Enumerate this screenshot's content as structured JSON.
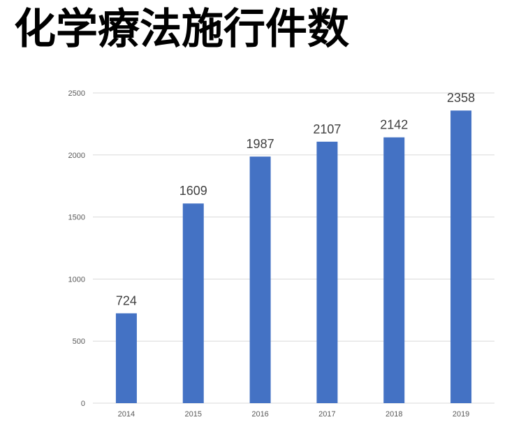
{
  "title": "化学療法施行件数",
  "chart_data": {
    "type": "bar",
    "categories": [
      "2014",
      "2015",
      "2016",
      "2017",
      "2018",
      "2019"
    ],
    "values": [
      724,
      1609,
      1987,
      2107,
      2142,
      2358
    ],
    "data_labels": [
      "724",
      "1609",
      "1987",
      "2107",
      "2142",
      "2358"
    ],
    "y_ticks": [
      0,
      500,
      1000,
      1500,
      2000,
      2500
    ],
    "y_tick_labels": [
      "0",
      "500",
      "1000",
      "1500",
      "2000",
      "2500"
    ],
    "ylim": [
      0,
      2500
    ],
    "grid": true,
    "legend": "none",
    "bar_color": "#4472c4",
    "grid_color": "#d9d9d9"
  }
}
